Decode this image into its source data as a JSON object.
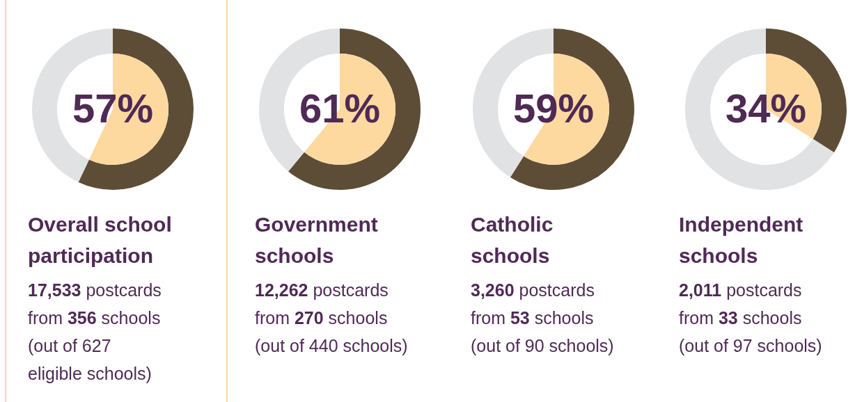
{
  "chart_data": [
    {
      "type": "donut",
      "title": "Overall school participation",
      "categories": [
        null,
        null
      ],
      "values": [
        57,
        43
      ],
      "colors": [
        "#5e4d36",
        "#e1e2e4"
      ],
      "value_labels": [
        "57%",
        null
      ],
      "annotations": [
        "17,533 postcards",
        "from 356 schools",
        "(out of 627",
        "eligible schools)"
      ]
    },
    {
      "type": "donut",
      "title": "Government schools",
      "categories": [
        null,
        null
      ],
      "values": [
        61,
        39
      ],
      "colors": [
        "#5e4d36",
        "#e1e2e4"
      ],
      "value_labels": [
        "61%",
        null
      ],
      "annotations": [
        "12,262 postcards",
        "from 270 schools",
        "(out of 440 schools)"
      ]
    },
    {
      "type": "donut",
      "title": "Catholic schools",
      "categories": [
        null,
        null
      ],
      "values": [
        59,
        41
      ],
      "colors": [
        "#5e4d36",
        "#e1e2e4"
      ],
      "value_labels": [
        "59%",
        null
      ],
      "annotations": [
        "3,260 postcards",
        "from 53 schools",
        "(out of 90 schools)"
      ]
    },
    {
      "type": "donut",
      "title": "Independent schools",
      "categories": [
        null,
        null
      ],
      "values": [
        34,
        66
      ],
      "colors": [
        "#5e4d36",
        "#e1e2e4"
      ],
      "value_labels": [
        "34%",
        null
      ],
      "annotations": [
        "2,011 postcards",
        "from 33 schools",
        "(out of 97 schools)"
      ]
    }
  ]
}
